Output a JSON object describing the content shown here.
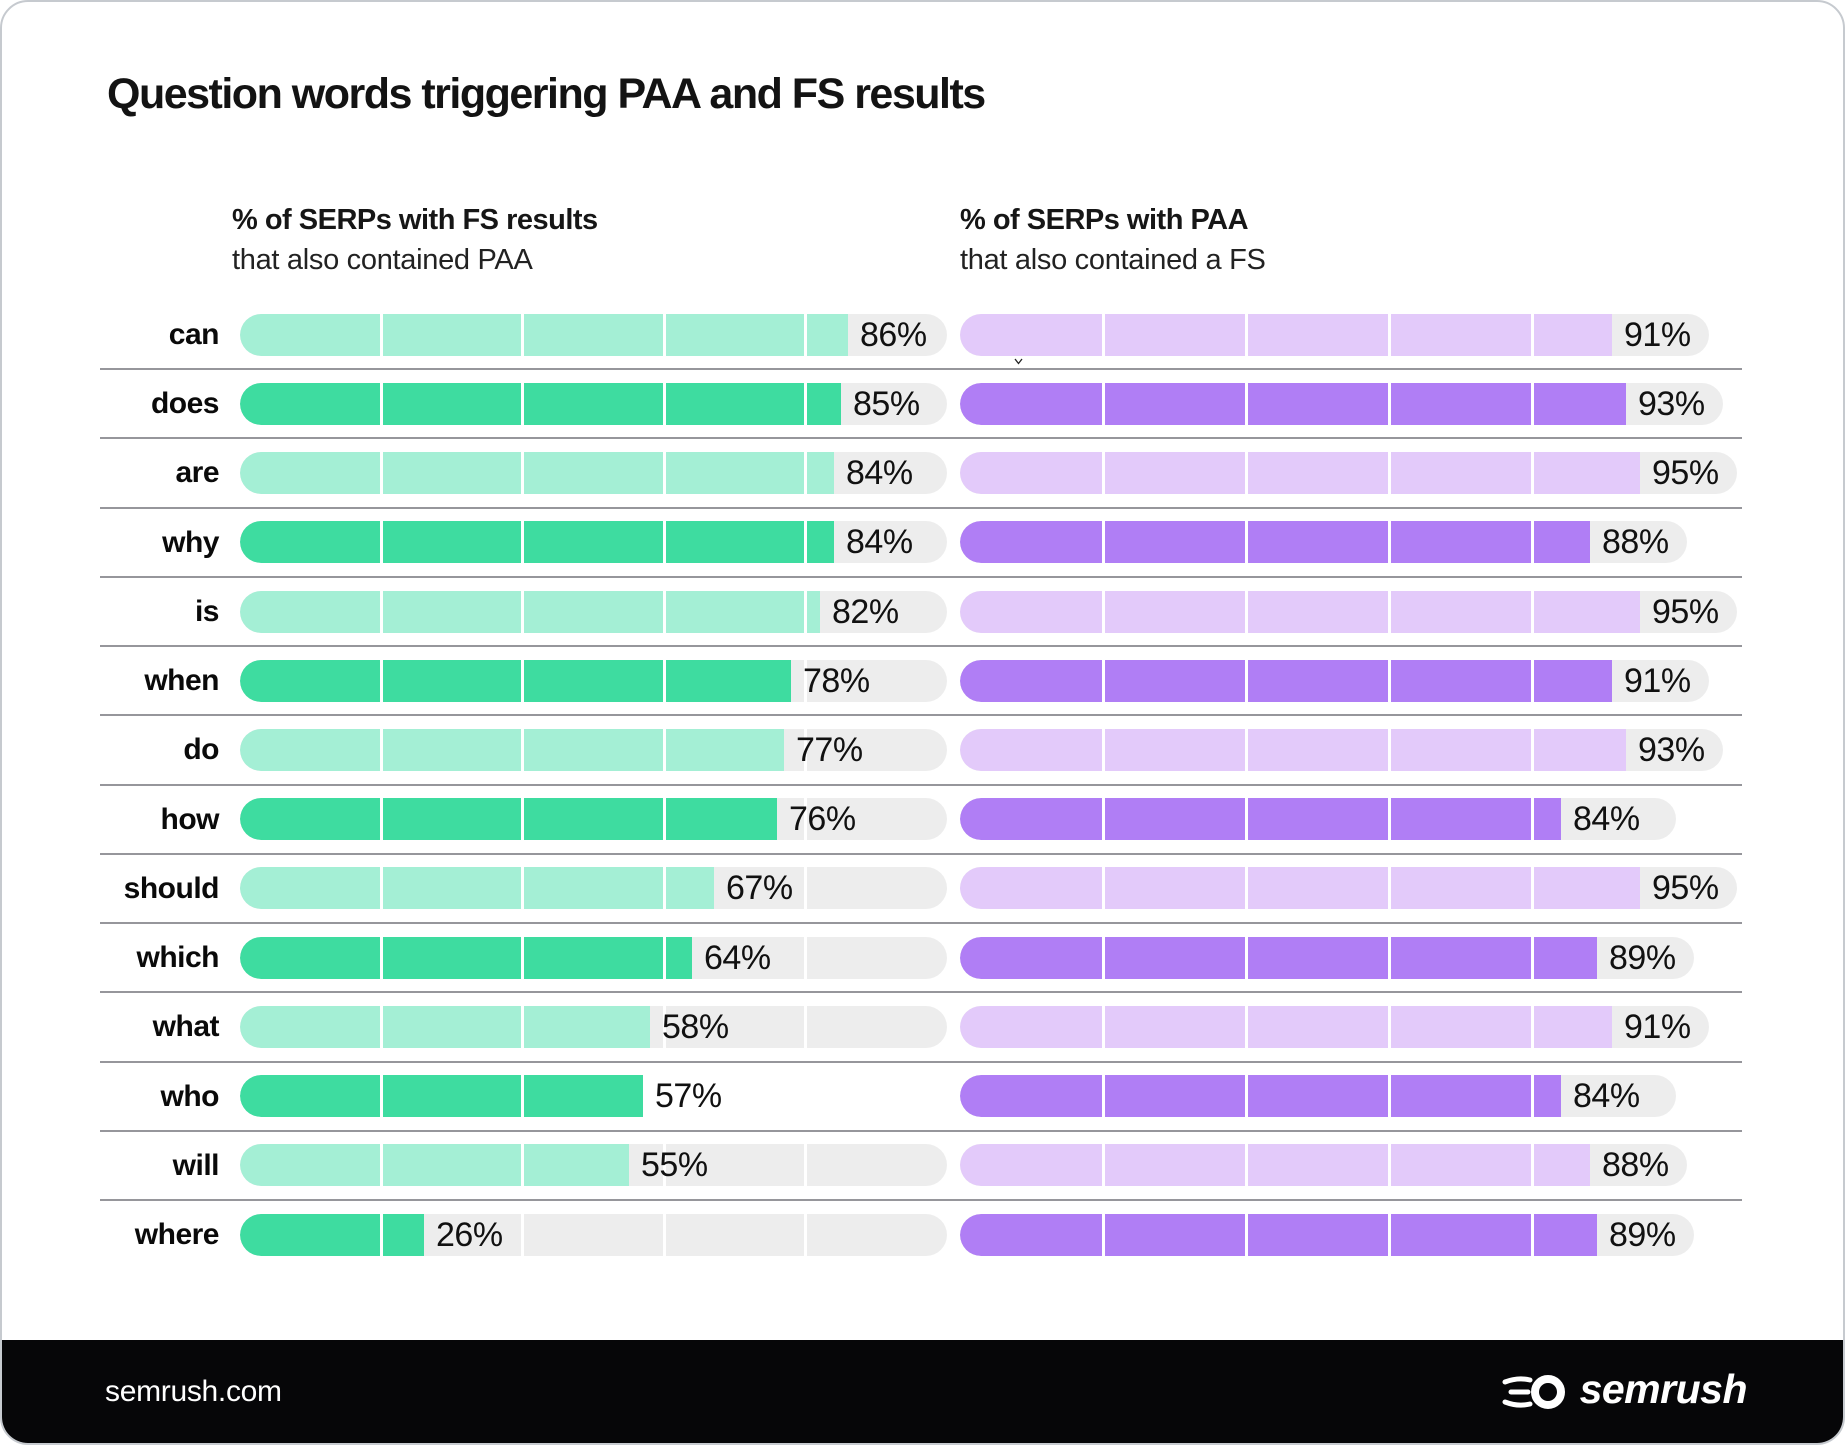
{
  "title": "Question words triggering PAA and FS results",
  "columns": {
    "left": {
      "title": "% of SERPs with FS results",
      "subtitle": "that also contained PAA"
    },
    "right": {
      "title": "% of SERPs with PAA",
      "subtitle": "that also contained a FS"
    }
  },
  "chart_data": {
    "type": "bar",
    "orientation": "horizontal",
    "xlim": [
      0,
      100
    ],
    "value_suffix": "%",
    "grid": "segment lines at 20/40/60/80% of each track",
    "segment_lines_at": [
      20,
      40,
      60,
      80
    ],
    "legend_position": "column headers above each bar group",
    "categories": [
      "can",
      "does",
      "are",
      "why",
      "is",
      "when",
      "do",
      "how",
      "should",
      "which",
      "what",
      "who",
      "will",
      "where"
    ],
    "series": [
      {
        "name": "% of SERPs with FS results that also contained PAA",
        "values": [
          86,
          85,
          84,
          84,
          82,
          78,
          77,
          76,
          67,
          64,
          58,
          57,
          55,
          26
        ]
      },
      {
        "name": "% of SERPs with PAA that also contained a FS",
        "values": [
          91,
          93,
          95,
          88,
          95,
          91,
          93,
          84,
          95,
          89,
          91,
          84,
          88,
          89
        ]
      }
    ],
    "value_labels_left": [
      "86%",
      "85%",
      "84%",
      "84%",
      "82%",
      "78%",
      "77%",
      "76%",
      "67%",
      "64%",
      "58%",
      "57%",
      "55%",
      "26%"
    ],
    "value_labels_right": [
      "91%",
      "93%",
      "95%",
      "88%",
      "95%",
      "91%",
      "93%",
      "84%",
      "95%",
      "89%",
      "91%",
      "84%",
      "88%",
      "89%"
    ],
    "quirks": {
      "left_track_hidden_for": "who"
    }
  },
  "colors": {
    "green_light": "#A4EFD5",
    "green_dark": "#3EDCA0",
    "purple_light": "#E3CAFA",
    "purple_dark": "#B07EF5",
    "track": "#EDEDED",
    "separator": "#96969B",
    "footer_bg": "#060608",
    "text": "#131313"
  },
  "footer": {
    "site": "semrush.com",
    "logo_text": "semrush"
  }
}
